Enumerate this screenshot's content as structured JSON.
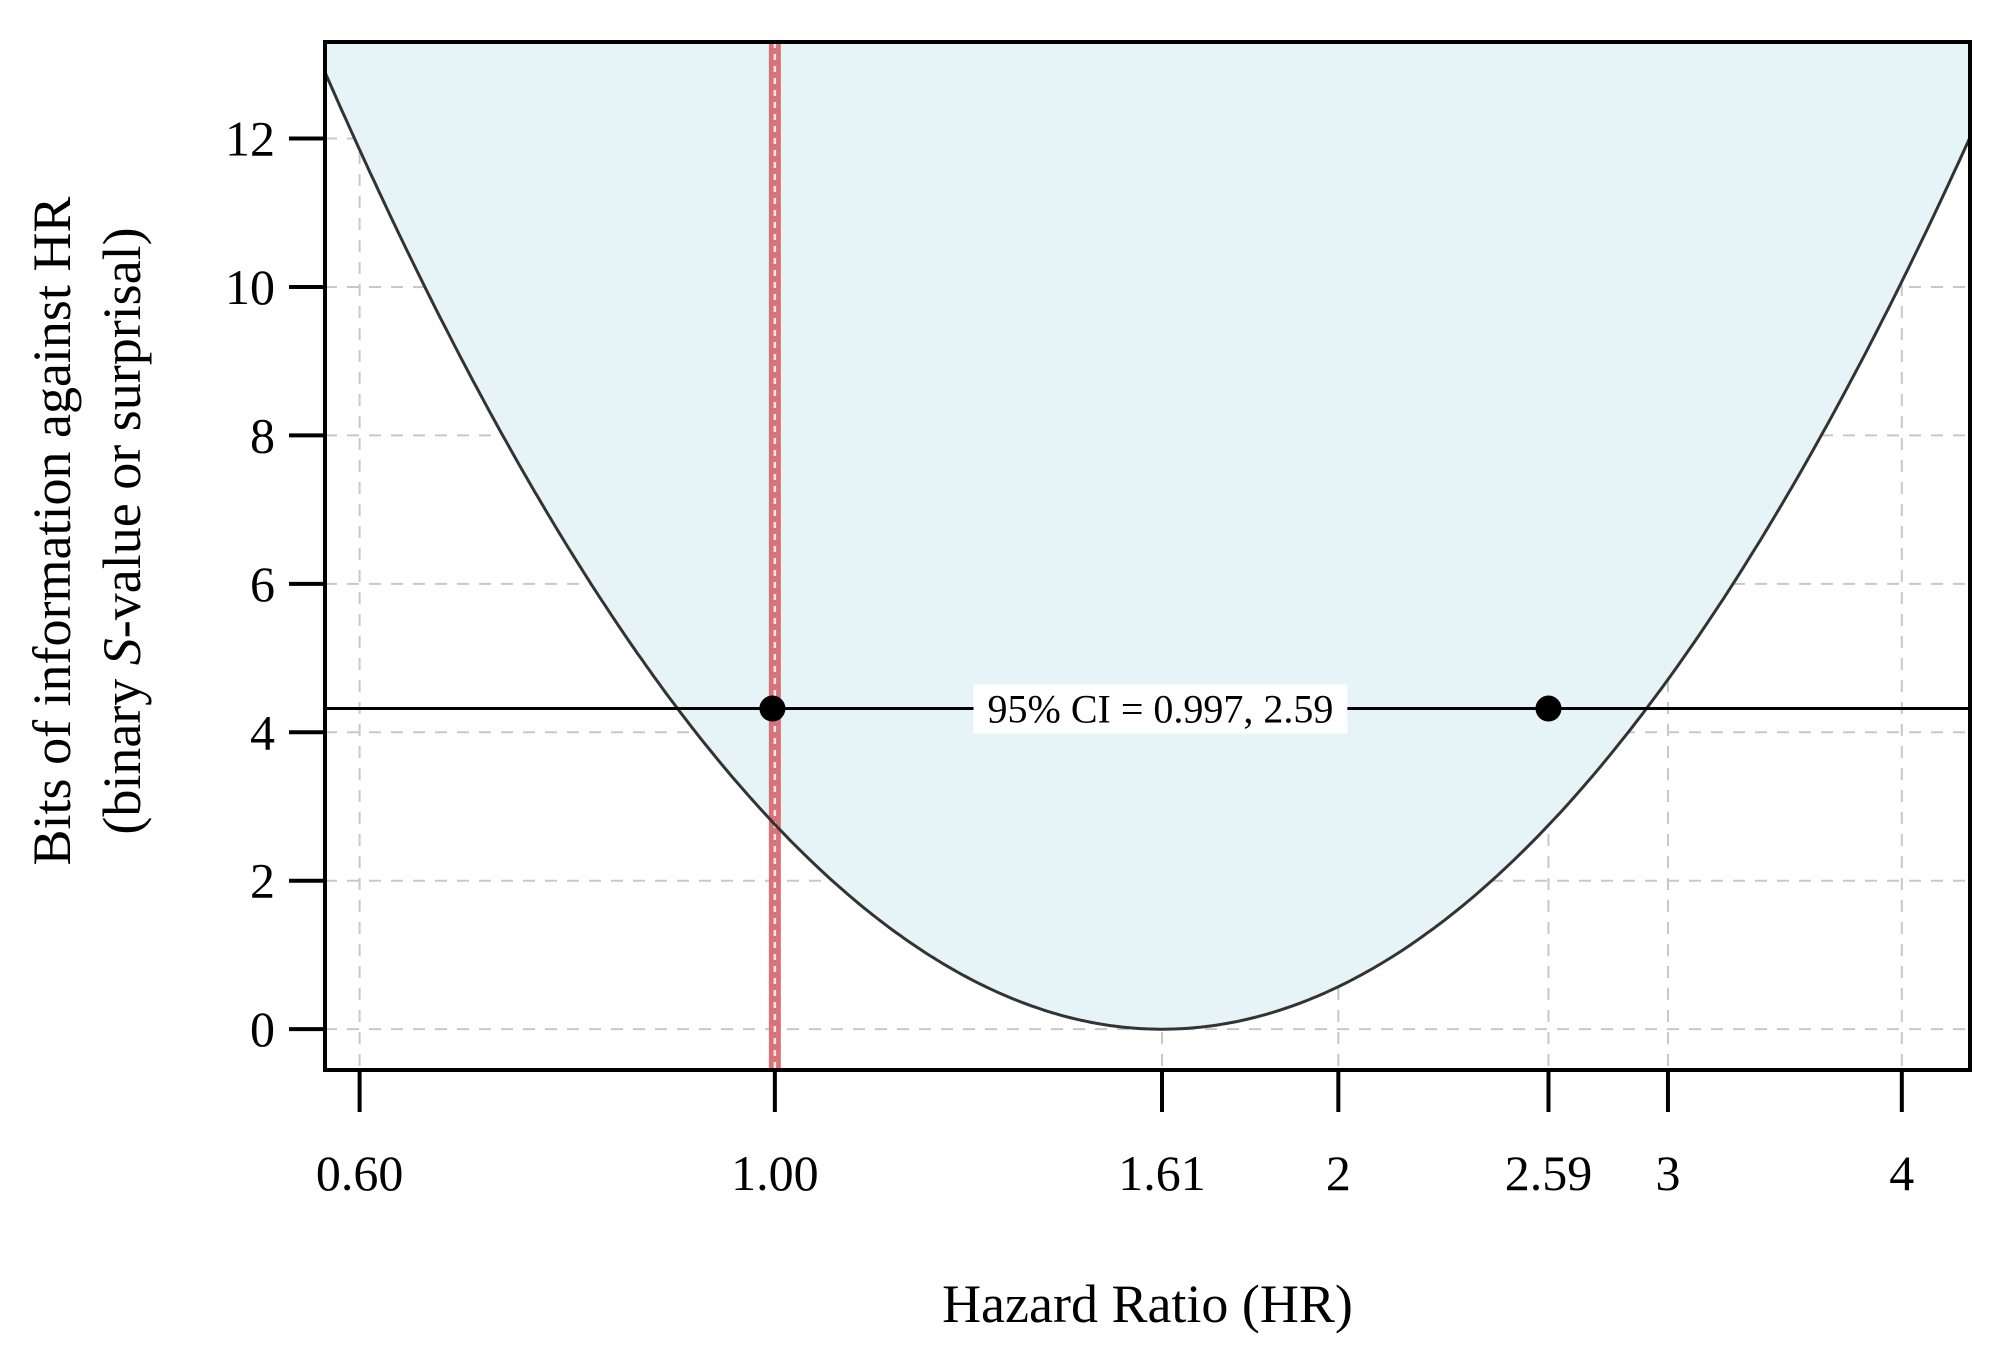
{
  "chart_data": {
    "type": "line",
    "xlabel": "Hazard Ratio (HR)",
    "ylabel_line1": "Bits of information against HR",
    "ylabel_line2_pre": "(binary ",
    "ylabel_line2_italic": "S",
    "ylabel_line2_post": "-value or surprisal)",
    "x_scale": "log",
    "xlim": [
      0.575,
      4.35
    ],
    "ylim": [
      -0.55,
      13.3
    ],
    "x_ticks": [
      {
        "value": 0.6,
        "label": "0.60"
      },
      {
        "value": 1.0,
        "label": "1.00"
      },
      {
        "value": 1.61,
        "label": "1.61"
      },
      {
        "value": 2,
        "label": "2"
      },
      {
        "value": 2.59,
        "label": "2.59"
      },
      {
        "value": 3,
        "label": "3"
      },
      {
        "value": 4,
        "label": "4"
      }
    ],
    "y_ticks": [
      {
        "value": 0,
        "label": "0"
      },
      {
        "value": 2,
        "label": "2"
      },
      {
        "value": 4,
        "label": "4"
      },
      {
        "value": 6,
        "label": "6"
      },
      {
        "value": 8,
        "label": "8"
      },
      {
        "value": 10,
        "label": "10"
      },
      {
        "value": 12,
        "label": "12"
      }
    ],
    "grid": true,
    "series": [
      {
        "kind": "s-value-curve",
        "point_estimate": 1.61,
        "ci_lower": 0.997,
        "ci_upper": 2.59,
        "ci_level": 0.95,
        "fill_color": "#e6f4f8",
        "line_color": "#333333"
      }
    ],
    "reference_line": {
      "x": 1.0,
      "color": "#d9737a"
    },
    "ci_line": {
      "y": 4.32,
      "color": "#000000"
    },
    "ci_points": [
      {
        "x": 0.997,
        "y": 4.32
      },
      {
        "x": 2.59,
        "y": 4.32
      }
    ],
    "annotation": "95% CI = 0.997, 2.59"
  }
}
